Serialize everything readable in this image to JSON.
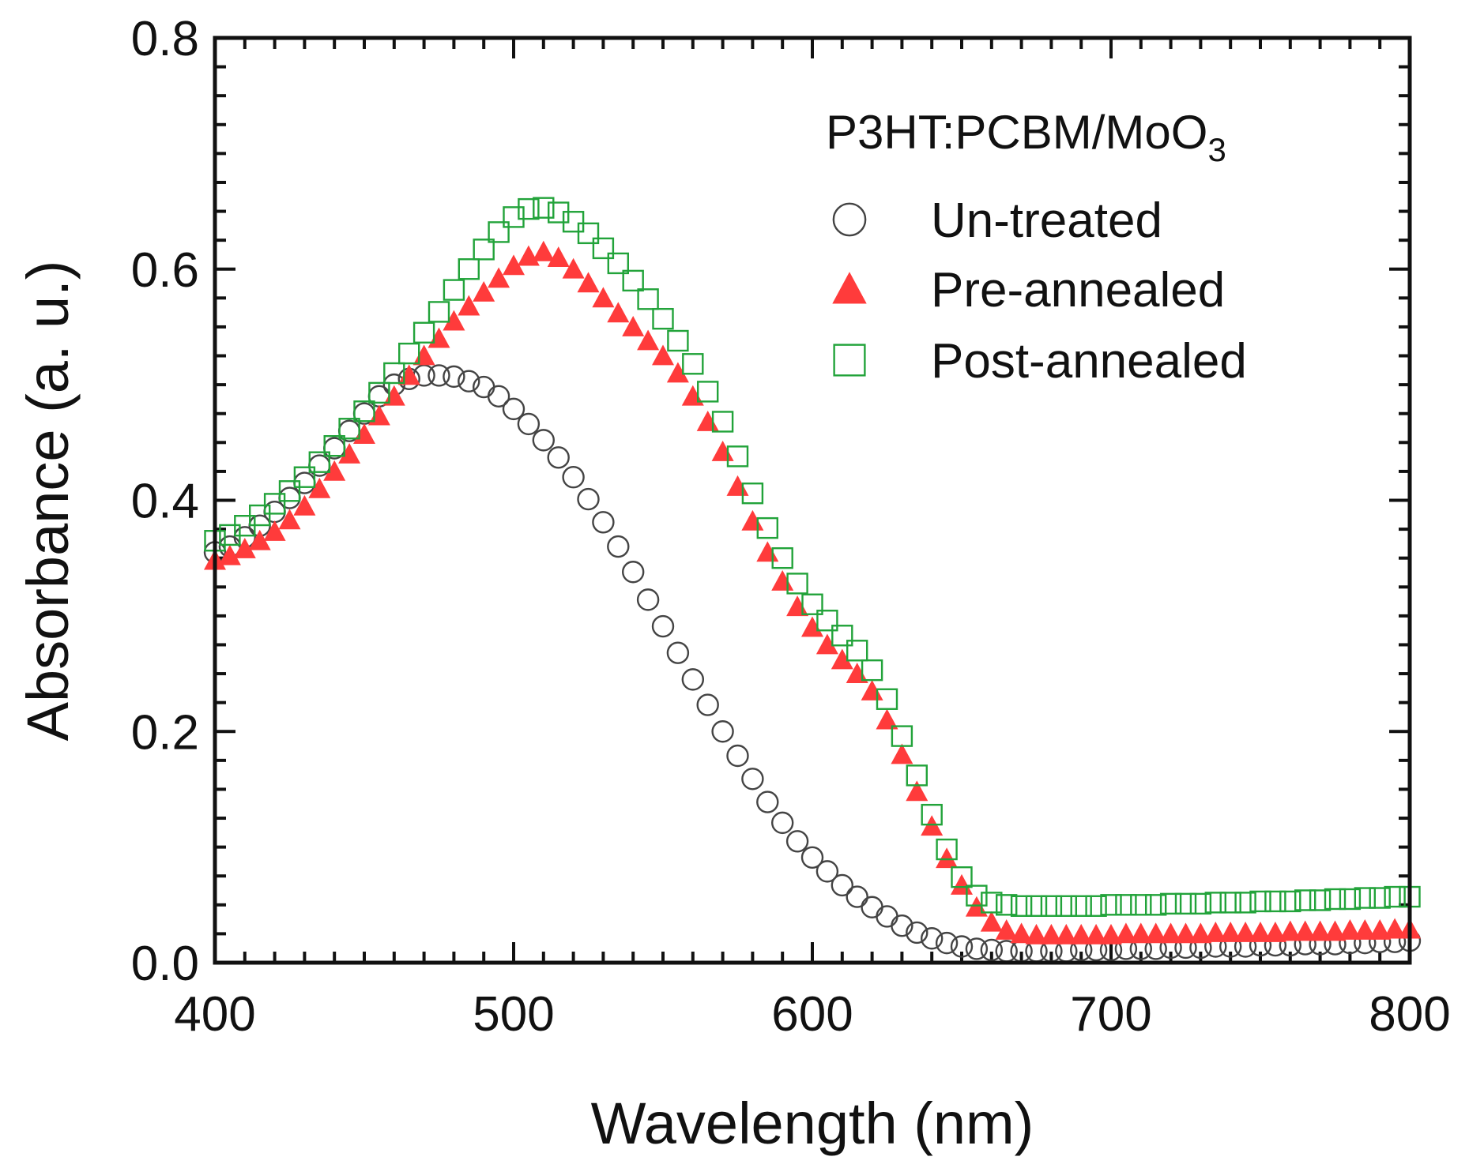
{
  "chart_data": {
    "type": "scatter",
    "title": "",
    "xlabel": "Wavelength (nm)",
    "ylabel": "Absorbance (a. u.)",
    "xlim": [
      400,
      800
    ],
    "ylim": [
      0.0,
      0.8
    ],
    "xticks": [
      400,
      500,
      600,
      700,
      800
    ],
    "xtick_labels": [
      "400",
      "500",
      "600",
      "700",
      "800"
    ],
    "yticks": [
      0.0,
      0.2,
      0.4,
      0.6,
      0.8
    ],
    "ytick_labels": [
      "0.0",
      "0.2",
      "0.4",
      "0.6",
      "0.8"
    ],
    "x_minor_step": 10,
    "y_minor_step": 0.025,
    "grid": false,
    "legend": {
      "position": "top-right",
      "title_main": "P3HT:PCBM/MoO",
      "title_sub": "3"
    },
    "x": [
      400,
      405,
      410,
      415,
      420,
      425,
      430,
      435,
      440,
      445,
      450,
      455,
      460,
      465,
      470,
      475,
      480,
      485,
      490,
      495,
      500,
      505,
      510,
      515,
      520,
      525,
      530,
      535,
      540,
      545,
      550,
      555,
      560,
      565,
      570,
      575,
      580,
      585,
      590,
      595,
      600,
      605,
      610,
      615,
      620,
      625,
      630,
      635,
      640,
      645,
      650,
      655,
      660,
      665,
      670,
      675,
      680,
      685,
      690,
      695,
      700,
      705,
      710,
      715,
      720,
      725,
      730,
      735,
      740,
      745,
      750,
      755,
      760,
      765,
      770,
      775,
      780,
      785,
      790,
      795,
      800
    ],
    "series": [
      {
        "name": "Un-treated",
        "marker": "open-circle",
        "color": "#444444",
        "values": [
          0.355,
          0.36,
          0.368,
          0.378,
          0.39,
          0.402,
          0.415,
          0.43,
          0.445,
          0.46,
          0.475,
          0.49,
          0.5,
          0.505,
          0.508,
          0.508,
          0.507,
          0.503,
          0.498,
          0.49,
          0.479,
          0.466,
          0.452,
          0.437,
          0.42,
          0.401,
          0.381,
          0.36,
          0.338,
          0.314,
          0.291,
          0.268,
          0.245,
          0.223,
          0.2,
          0.179,
          0.159,
          0.139,
          0.121,
          0.105,
          0.091,
          0.079,
          0.067,
          0.057,
          0.048,
          0.04,
          0.032,
          0.026,
          0.021,
          0.017,
          0.014,
          0.012,
          0.011,
          0.01,
          0.01,
          0.01,
          0.01,
          0.01,
          0.011,
          0.011,
          0.011,
          0.012,
          0.012,
          0.012,
          0.013,
          0.013,
          0.013,
          0.014,
          0.014,
          0.014,
          0.015,
          0.015,
          0.015,
          0.016,
          0.016,
          0.016,
          0.017,
          0.017,
          0.018,
          0.018,
          0.019
        ]
      },
      {
        "name": "Pre-annealed",
        "marker": "filled-triangle",
        "color": "#ff3b3b",
        "values": [
          0.348,
          0.352,
          0.358,
          0.365,
          0.373,
          0.383,
          0.395,
          0.41,
          0.425,
          0.44,
          0.457,
          0.473,
          0.49,
          0.508,
          0.525,
          0.54,
          0.555,
          0.568,
          0.58,
          0.592,
          0.603,
          0.611,
          0.615,
          0.61,
          0.6,
          0.588,
          0.575,
          0.562,
          0.55,
          0.538,
          0.525,
          0.51,
          0.49,
          0.468,
          0.442,
          0.412,
          0.382,
          0.355,
          0.33,
          0.308,
          0.29,
          0.275,
          0.262,
          0.25,
          0.235,
          0.21,
          0.18,
          0.148,
          0.118,
          0.09,
          0.067,
          0.048,
          0.035,
          0.028,
          0.025,
          0.024,
          0.024,
          0.024,
          0.024,
          0.024,
          0.024,
          0.025,
          0.025,
          0.025,
          0.025,
          0.025,
          0.025,
          0.026,
          0.026,
          0.026,
          0.026,
          0.026,
          0.027,
          0.027,
          0.027,
          0.027,
          0.028,
          0.028,
          0.028,
          0.029,
          0.029
        ]
      },
      {
        "name": "Post-annealed",
        "marker": "open-square",
        "color": "#22a33a",
        "values": [
          0.365,
          0.37,
          0.378,
          0.387,
          0.397,
          0.408,
          0.42,
          0.433,
          0.447,
          0.462,
          0.477,
          0.493,
          0.51,
          0.527,
          0.545,
          0.563,
          0.582,
          0.6,
          0.617,
          0.632,
          0.645,
          0.652,
          0.653,
          0.649,
          0.641,
          0.631,
          0.618,
          0.605,
          0.59,
          0.574,
          0.557,
          0.538,
          0.518,
          0.494,
          0.468,
          0.438,
          0.406,
          0.376,
          0.35,
          0.328,
          0.31,
          0.296,
          0.283,
          0.27,
          0.253,
          0.228,
          0.196,
          0.162,
          0.128,
          0.098,
          0.074,
          0.058,
          0.052,
          0.05,
          0.049,
          0.049,
          0.049,
          0.049,
          0.049,
          0.049,
          0.05,
          0.05,
          0.05,
          0.05,
          0.051,
          0.051,
          0.051,
          0.052,
          0.052,
          0.052,
          0.053,
          0.053,
          0.053,
          0.054,
          0.054,
          0.055,
          0.055,
          0.056,
          0.056,
          0.057,
          0.057
        ]
      }
    ]
  }
}
